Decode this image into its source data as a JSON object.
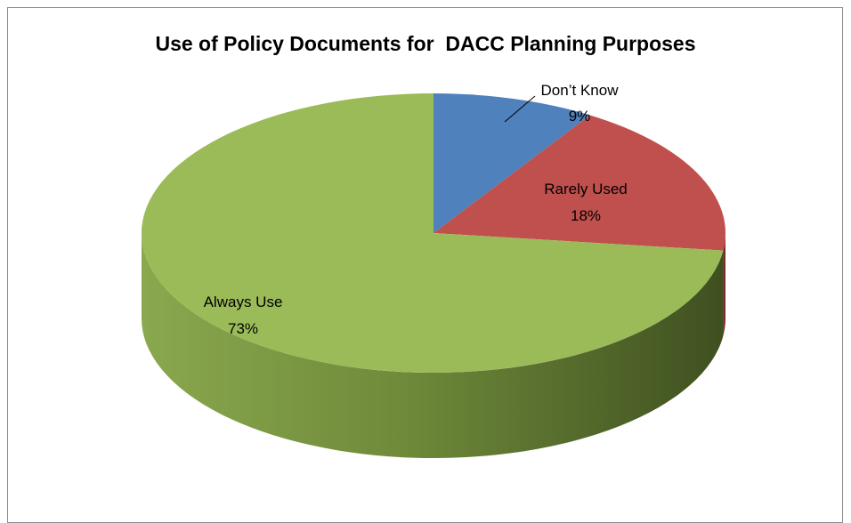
{
  "chart_data": {
    "type": "pie",
    "title": "Use of Policy Documents for  DACC Planning Purposes",
    "slices": [
      {
        "label": "Don’t Know",
        "value": 9,
        "display": "9%",
        "color": "#4f81bd",
        "dark": "#2c4d75"
      },
      {
        "label": "Rarely Used",
        "value": 18,
        "display": "18%",
        "color": "#c0504d",
        "dark": "#772c2a"
      },
      {
        "label": "Always Use",
        "value": 73,
        "display": "73%",
        "color": "#9bbb59",
        "dark": "#4f6228"
      }
    ],
    "legend": "none",
    "three_d": true
  }
}
